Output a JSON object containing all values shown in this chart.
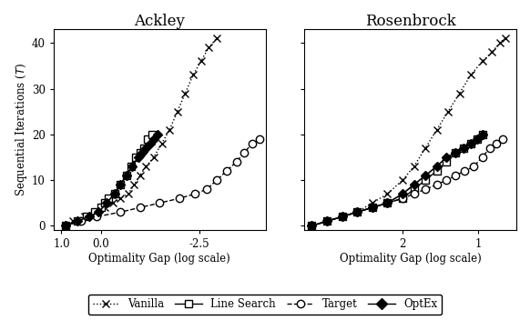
{
  "ackley": {
    "title": "Ackley",
    "xlabel": "Optimality Gap (log scale)",
    "ylabel": "Sequential Iterations ($T$)",
    "xlim": [
      1.2,
      -4.2
    ],
    "ylim": [
      -1,
      43
    ],
    "xticks": [
      1.0,
      0.0,
      -2.5
    ],
    "xticklabels": [
      "1.0",
      "0.0",
      "-2.5"
    ],
    "vanilla": {
      "x": [
        0.9,
        0.7,
        0.4,
        0.1,
        -0.1,
        -0.3,
        -0.5,
        -0.7,
        -0.85,
        -1.0,
        -1.15,
        -1.35,
        -1.55,
        -1.75,
        -1.95,
        -2.15,
        -2.35,
        -2.55,
        -2.75,
        -2.95
      ],
      "y": [
        0,
        1,
        2,
        3,
        4,
        5,
        6,
        7,
        9,
        11,
        13,
        15,
        18,
        21,
        25,
        29,
        33,
        36,
        39,
        41
      ]
    },
    "linesearch": {
      "x": [
        0.9,
        0.6,
        0.35,
        0.15,
        0.0,
        -0.1,
        -0.2,
        -0.35,
        -0.5,
        -0.65,
        -0.78,
        -0.9,
        -1.0,
        -1.1,
        -1.2,
        -1.3
      ],
      "y": [
        0,
        1,
        2,
        3,
        4,
        5,
        6,
        7,
        9,
        11,
        13,
        15,
        16,
        17,
        19,
        20
      ]
    },
    "target": {
      "x": [
        0.9,
        0.5,
        0.1,
        -0.5,
        -1.0,
        -1.5,
        -2.0,
        -2.4,
        -2.7,
        -2.95,
        -3.2,
        -3.45,
        -3.65,
        -3.85,
        -4.05
      ],
      "y": [
        0,
        1,
        2,
        3,
        4,
        5,
        6,
        7,
        8,
        10,
        12,
        14,
        16,
        18,
        19
      ]
    },
    "optex": {
      "x": [
        0.9,
        0.6,
        0.3,
        0.05,
        -0.15,
        -0.35,
        -0.5,
        -0.65,
        -0.8,
        -0.95,
        -1.05,
        -1.15,
        -1.25,
        -1.35,
        -1.45
      ],
      "y": [
        0,
        1,
        2,
        3,
        5,
        7,
        9,
        11,
        13,
        15,
        16,
        17,
        18,
        19,
        20
      ]
    }
  },
  "rosenbrock": {
    "title": "Rosenbrock",
    "xlabel": "Optimality Gap (log scale)",
    "ylabel": "Sequential Iterations ($T$)",
    "xlim": [
      3.3,
      0.5
    ],
    "ylim": [
      -1,
      43
    ],
    "xticks": [
      2.0,
      1.0
    ],
    "xticklabels": [
      "2",
      "1"
    ],
    "vanilla": {
      "x": [
        3.2,
        3.0,
        2.8,
        2.6,
        2.4,
        2.2,
        2.0,
        1.85,
        1.7,
        1.55,
        1.4,
        1.25,
        1.1,
        0.95,
        0.82,
        0.72,
        0.65
      ],
      "y": [
        0,
        1,
        2,
        3,
        5,
        7,
        10,
        13,
        17,
        21,
        25,
        29,
        33,
        36,
        38,
        40,
        41
      ]
    },
    "linesearch": {
      "x": [
        3.2,
        3.0,
        2.8,
        2.6,
        2.4,
        2.2,
        2.0,
        1.85,
        1.7,
        1.55,
        1.42,
        1.3,
        1.2,
        1.1,
        1.02,
        0.95
      ],
      "y": [
        0,
        1,
        2,
        3,
        4,
        5,
        6,
        8,
        10,
        12,
        14,
        16,
        17,
        18,
        19,
        20
      ]
    },
    "target": {
      "x": [
        3.2,
        3.0,
        2.8,
        2.6,
        2.4,
        2.2,
        2.0,
        1.85,
        1.7,
        1.55,
        1.42,
        1.3,
        1.18,
        1.06,
        0.95,
        0.85,
        0.76,
        0.68
      ],
      "y": [
        0,
        1,
        2,
        3,
        4,
        5,
        6,
        7,
        8,
        9,
        10,
        11,
        12,
        13,
        15,
        17,
        18,
        19
      ]
    },
    "optex": {
      "x": [
        3.2,
        3.0,
        2.8,
        2.6,
        2.4,
        2.2,
        2.0,
        1.85,
        1.7,
        1.55,
        1.42,
        1.3,
        1.2,
        1.1,
        1.02,
        0.95
      ],
      "y": [
        0,
        1,
        2,
        3,
        4,
        5,
        7,
        9,
        11,
        13,
        15,
        16,
        17,
        18,
        19,
        20
      ]
    }
  },
  "series_styles": {
    "vanilla": {
      "marker": "x",
      "linestyle": ":",
      "color": "black",
      "markersize": 6,
      "linewidth": 1.0,
      "mfc": "black"
    },
    "linesearch": {
      "marker": "s",
      "linestyle": "-",
      "color": "black",
      "markersize": 6,
      "linewidth": 1.0,
      "mfc": "white"
    },
    "target": {
      "marker": "o",
      "linestyle": "--",
      "color": "black",
      "markersize": 6,
      "linewidth": 1.0,
      "mfc": "white"
    },
    "optex": {
      "marker": "D",
      "linestyle": "-",
      "color": "black",
      "markersize": 5,
      "linewidth": 1.2,
      "mfc": "black"
    }
  },
  "legend_entries": [
    {
      "label": "Vanilla",
      "marker": "x",
      "linestyle": ":",
      "mfc": "black",
      "mec": "black"
    },
    {
      "label": "Line Search",
      "marker": "s",
      "linestyle": "-",
      "mfc": "white",
      "mec": "black"
    },
    {
      "label": "Target",
      "marker": "o",
      "linestyle": "--",
      "mfc": "white",
      "mec": "black"
    },
    {
      "label": "OptEx",
      "marker": "D",
      "linestyle": "-",
      "mfc": "black",
      "mec": "black"
    }
  ]
}
